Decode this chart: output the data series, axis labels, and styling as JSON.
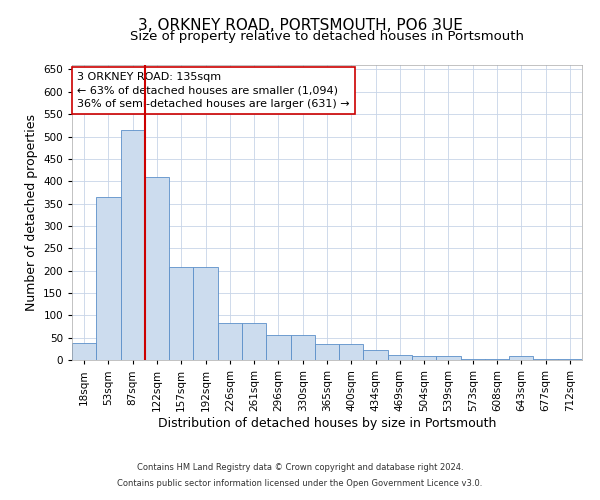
{
  "title1": "3, ORKNEY ROAD, PORTSMOUTH, PO6 3UE",
  "title2": "Size of property relative to detached houses in Portsmouth",
  "xlabel": "Distribution of detached houses by size in Portsmouth",
  "ylabel": "Number of detached properties",
  "categories": [
    "18sqm",
    "53sqm",
    "87sqm",
    "122sqm",
    "157sqm",
    "192sqm",
    "226sqm",
    "261sqm",
    "296sqm",
    "330sqm",
    "365sqm",
    "400sqm",
    "434sqm",
    "469sqm",
    "504sqm",
    "539sqm",
    "573sqm",
    "608sqm",
    "643sqm",
    "677sqm",
    "712sqm"
  ],
  "values": [
    37,
    365,
    515,
    410,
    207,
    207,
    83,
    83,
    57,
    57,
    36,
    36,
    23,
    12,
    8,
    8,
    2,
    2,
    8,
    2,
    2
  ],
  "bar_color": "#ccdcee",
  "bar_edge_color": "#5b8fc9",
  "vline_x_idx": 3,
  "vline_color": "#cc0000",
  "annotation_box_color": "#cc0000",
  "annotation_line1": "3 ORKNEY ROAD: 135sqm",
  "annotation_line2": "← 63% of detached houses are smaller (1,094)",
  "annotation_line3": "36% of semi-detached houses are larger (631) →",
  "footnote1": "Contains HM Land Registry data © Crown copyright and database right 2024.",
  "footnote2": "Contains public sector information licensed under the Open Government Licence v3.0.",
  "ylim": [
    0,
    660
  ],
  "yticks": [
    0,
    50,
    100,
    150,
    200,
    250,
    300,
    350,
    400,
    450,
    500,
    550,
    600,
    650
  ],
  "bg_color": "#ffffff",
  "grid_color": "#c8d4e8",
  "title1_fontsize": 11,
  "title2_fontsize": 9.5,
  "tick_fontsize": 7.5,
  "label_fontsize": 9,
  "footnote_fontsize": 6,
  "annot_fontsize": 8
}
